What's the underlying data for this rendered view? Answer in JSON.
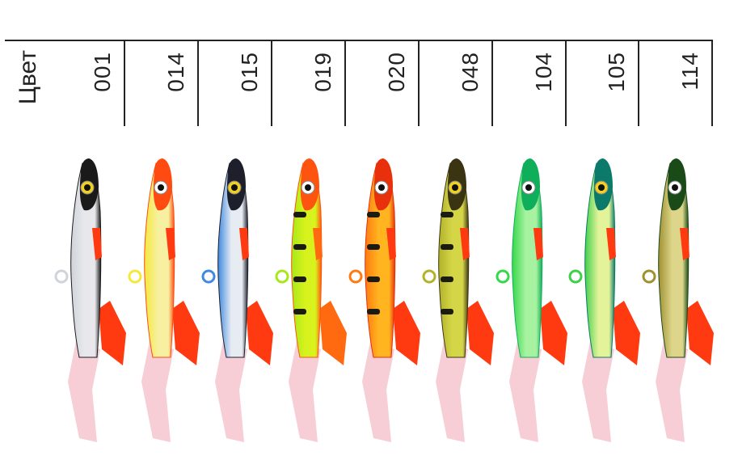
{
  "title": "Цвет",
  "colors": [
    {
      "code": "001",
      "back": "#1a1a1a",
      "body": "#e8e8ec",
      "belly": "#cfd3da",
      "fin": "#ff3a10",
      "eye": "#f0d020",
      "stripes": false
    },
    {
      "code": "014",
      "back": "#ff4a12",
      "body": "#f7f0a0",
      "belly": "#f5e83a",
      "fin": "#ff3a10",
      "eye": "#ffffff",
      "stripes": false
    },
    {
      "code": "015",
      "back": "#1d1f2a",
      "body": "#e7ecf3",
      "belly": "#3f8ae0",
      "fin": "#ff3a10",
      "eye": "#f0d020",
      "stripes": false
    },
    {
      "code": "019",
      "back": "#ff5410",
      "body": "#d7f21c",
      "belly": "#a6e81a",
      "fin": "#ff6a10",
      "eye": "#ffffff",
      "stripes": true
    },
    {
      "code": "020",
      "back": "#e8300c",
      "body": "#ffb420",
      "belly": "#ff7a10",
      "fin": "#ff3a10",
      "eye": "#ffffff",
      "stripes": true
    },
    {
      "code": "048",
      "back": "#3a3412",
      "body": "#d5d548",
      "belly": "#b2b22a",
      "fin": "#ff3a10",
      "eye": "#f0d020",
      "stripes": true
    },
    {
      "code": "104",
      "back": "#0fae5a",
      "body": "#a6f2a0",
      "belly": "#35d84a",
      "fin": "#ff3a10",
      "eye": "#ffffff",
      "stripes": false
    },
    {
      "code": "105",
      "back": "#0c7a6a",
      "body": "#e3f39a",
      "belly": "#3fd04a",
      "fin": "#ff3a10",
      "eye": "#f0d020",
      "stripes": false
    },
    {
      "code": "114",
      "back": "#1a4a18",
      "body": "#dcd58a",
      "belly": "#a09030",
      "fin": "#ff3a10",
      "eye": "#ffffff",
      "stripes": false
    }
  ]
}
